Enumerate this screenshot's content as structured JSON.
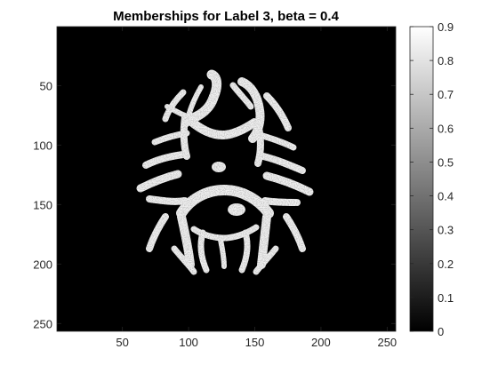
{
  "chart_data": {
    "type": "heatmap",
    "title": "Memberships for Label 3, beta = 0.4",
    "xlabel": "",
    "ylabel": "",
    "xlim": [
      0.5,
      256.5
    ],
    "ylim": [
      0.5,
      256.5
    ],
    "y_direction": "reversed",
    "x_ticks": [
      50,
      100,
      150,
      200,
      250
    ],
    "x_tick_labels": [
      "50",
      "100",
      "150",
      "200",
      "250"
    ],
    "y_ticks": [
      50,
      100,
      150,
      200,
      250
    ],
    "y_tick_labels": [
      "50",
      "100",
      "150",
      "200",
      "250"
    ],
    "colormap": "gray",
    "colorbar": {
      "range": [
        0,
        0.9
      ],
      "ticks": [
        0,
        0.1,
        0.2,
        0.3,
        0.4,
        0.5,
        0.6,
        0.7,
        0.8,
        0.9
      ],
      "tick_labels": [
        "0",
        "0.1",
        "0.2",
        "0.3",
        "0.4",
        "0.5",
        "0.6",
        "0.7",
        "0.8",
        "0.9"
      ]
    },
    "background_value": 0,
    "foreground_value": 0.9,
    "grid": false
  }
}
